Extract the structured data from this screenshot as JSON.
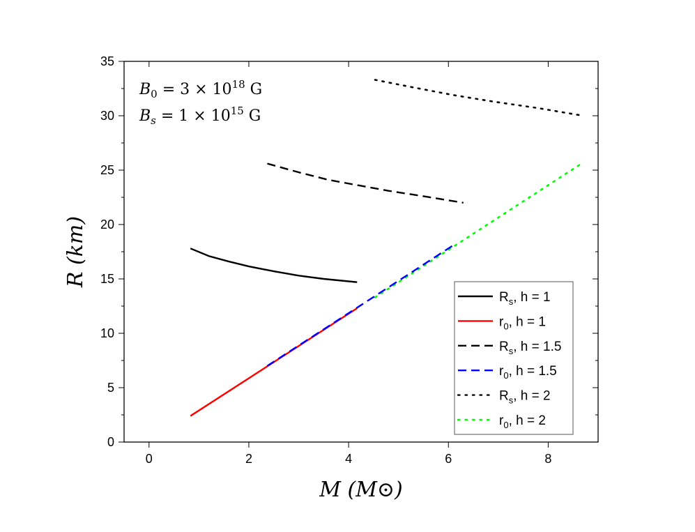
{
  "chart_data": {
    "type": "line",
    "xlabel": "M (M⊙)",
    "ylabel": "R (km)",
    "xlim": [
      -0.5,
      9
    ],
    "ylim": [
      0,
      35
    ],
    "xticks": [
      0,
      2,
      4,
      6,
      8
    ],
    "yticks": [
      0,
      5,
      10,
      15,
      20,
      25,
      30,
      35
    ],
    "grid": false,
    "legend_placement": "bottom-right",
    "annotation": [
      "B0 = 3 × 10^18 G",
      "Bs = 1 × 10^15 G"
    ],
    "annotation_parts": [
      {
        "sym": "B",
        "sub": "0",
        "eq": " = 3 × 10",
        "exp": "18",
        "unit": " G"
      },
      {
        "sym": "B",
        "sub": "s",
        "eq": " = 1 × 10",
        "exp": "15",
        "unit": " G"
      }
    ],
    "series": [
      {
        "name": "Rs, h = 1",
        "label_main": "R",
        "label_sub": "s",
        "label_rest": ", h = 1",
        "color": "#000000",
        "style": "solid",
        "x": [
          0.83,
          1.2,
          1.6,
          2.0,
          2.5,
          3.0,
          3.5,
          4.17
        ],
        "y": [
          17.8,
          17.1,
          16.6,
          16.15,
          15.7,
          15.3,
          15.0,
          14.7
        ]
      },
      {
        "name": "r0, h = 1",
        "label_main": "r",
        "label_sub": "0",
        "label_rest": ", h = 1",
        "color": "#ff0000",
        "style": "solid",
        "x": [
          0.83,
          4.17
        ],
        "y": [
          2.4,
          12.3
        ]
      },
      {
        "name": "Rs, h = 1.5",
        "label_main": "R",
        "label_sub": "s",
        "label_rest": ", h = 1.5",
        "color": "#000000",
        "style": "dashed",
        "x": [
          2.37,
          3.0,
          3.6,
          4.2,
          4.8,
          5.5,
          6.3
        ],
        "y": [
          25.6,
          24.8,
          24.1,
          23.6,
          23.1,
          22.6,
          22.0
        ]
      },
      {
        "name": "r0, h = 1.5",
        "label_main": "r",
        "label_sub": "0",
        "label_rest": ", h = 1.5",
        "color": "#0000ff",
        "style": "dashed",
        "x": [
          2.37,
          6.1
        ],
        "y": [
          7.0,
          18.1
        ]
      },
      {
        "name": "Rs, h = 2",
        "label_main": "R",
        "label_sub": "s",
        "label_rest": ", h = 2",
        "color": "#000000",
        "style": "dotted",
        "x": [
          4.53,
          5.3,
          6.1,
          6.9,
          7.8,
          8.7
        ],
        "y": [
          33.3,
          32.6,
          31.9,
          31.3,
          30.7,
          30.0
        ]
      },
      {
        "name": "r0, h = 2",
        "label_main": "r",
        "label_sub": "0",
        "label_rest": ", h = 2",
        "color": "#00ff00",
        "style": "dotted",
        "x": [
          4.53,
          8.7
        ],
        "y": [
          13.3,
          25.7
        ]
      }
    ]
  }
}
